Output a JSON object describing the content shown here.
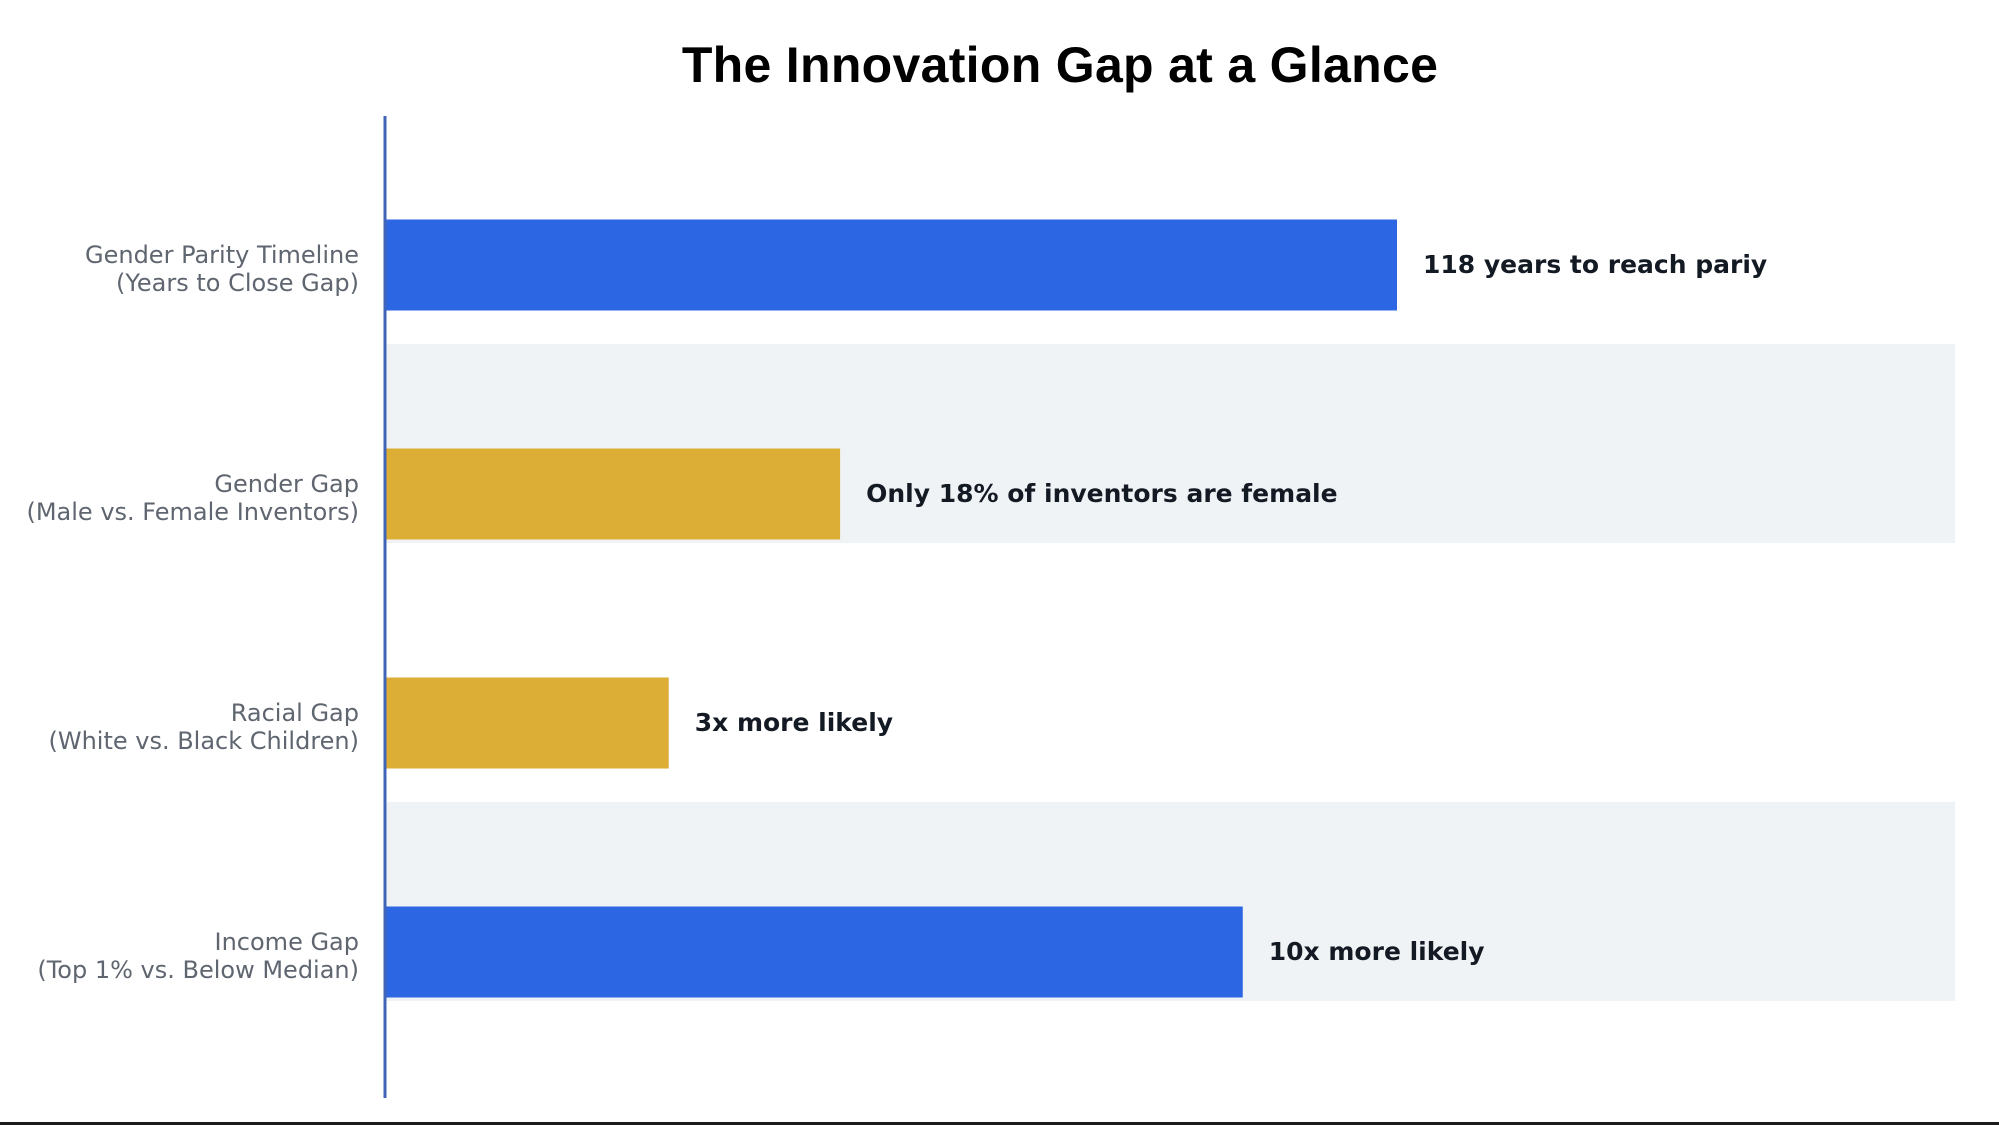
{
  "chart_data": {
    "type": "bar",
    "orientation": "horizontal",
    "title": "The Innovation Gap at a Glance",
    "xlabel": "",
    "ylabel": "",
    "xlim": [
      0,
      118
    ],
    "grid": false,
    "legend": "none",
    "categories": [
      [
        "Gender Parity Timeline",
        "(Years to Close Gap)"
      ],
      [
        "Gender Gap",
        "(Male vs. Female Inventors)"
      ],
      [
        "Racial Gap",
        "(White vs. Black Children)"
      ],
      [
        "Income Gap",
        "(Top 1% vs. Below Median)"
      ]
    ],
    "values": [
      118,
      53,
      33,
      100
    ],
    "bar_colors": [
      "#2d66e2",
      "#dcae36",
      "#dcae36",
      "#2d66e2"
    ],
    "data_labels": [
      "118 years to reach pariy",
      "Only 18% of inventors are female",
      "3x more likely",
      "10x more likely"
    ],
    "row_band_color": "#f0f3f5",
    "axis_color": "#3f64b8"
  }
}
